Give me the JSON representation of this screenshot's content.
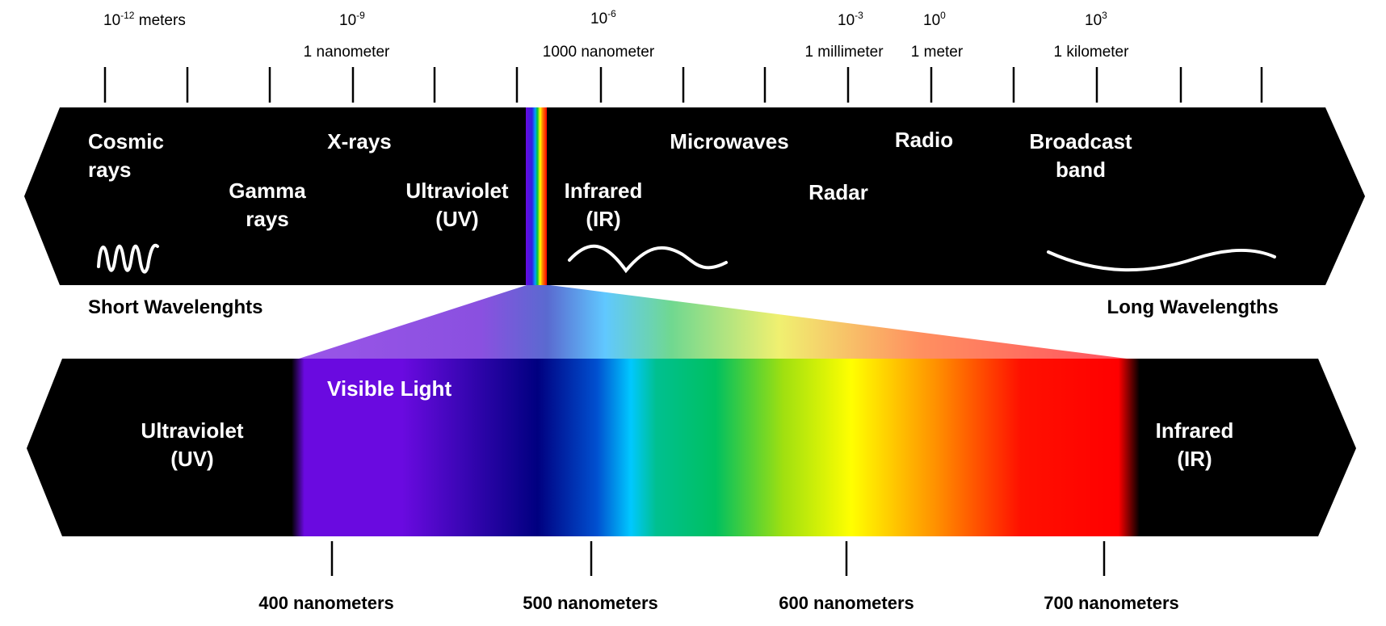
{
  "scale": [
    {
      "base": "10",
      "exp": "-12",
      "unit": " meters",
      "name": ""
    },
    {
      "base": "10",
      "exp": "-9",
      "unit": "",
      "name": "1 nanometer"
    },
    {
      "base": "10",
      "exp": "-6",
      "unit": "",
      "name": "1000 nanometer"
    },
    {
      "base": "10",
      "exp": "-3",
      "unit": "",
      "name": "1 millimeter"
    },
    {
      "base": "10",
      "exp": "0",
      "unit": "",
      "name": "1 meter"
    },
    {
      "base": "10",
      "exp": "3",
      "unit": "",
      "name": "1 kilometer"
    }
  ],
  "spectrum": {
    "cosmic": [
      "Cosmic",
      "rays"
    ],
    "xrays": "X-rays",
    "gamma": [
      "Gamma",
      "rays"
    ],
    "uv": [
      "Ultraviolet",
      "(UV)"
    ],
    "ir": [
      "Infrared",
      "(IR)"
    ],
    "microwaves": "Microwaves",
    "radar": "Radar",
    "radio": "Radio",
    "broadcast": [
      "Broadcast",
      "band"
    ]
  },
  "short_label": "Short Wavelenghts",
  "long_label": "Long Wavelengths",
  "visible": {
    "title": "Visible Light",
    "uv": [
      "Ultraviolet",
      "(UV)"
    ],
    "ir": [
      "Infrared",
      "(IR)"
    ],
    "ticks": [
      "400 nanometers",
      "500 nanometers",
      "600 nanometers",
      "700 nanometers"
    ]
  },
  "colors": {
    "band": "#000000",
    "violet": "#6a0ae0",
    "blue": "#000080",
    "cyan": "#00c8ff",
    "green": "#00c060",
    "yellow": "#ffff00",
    "red": "#ff0000"
  }
}
